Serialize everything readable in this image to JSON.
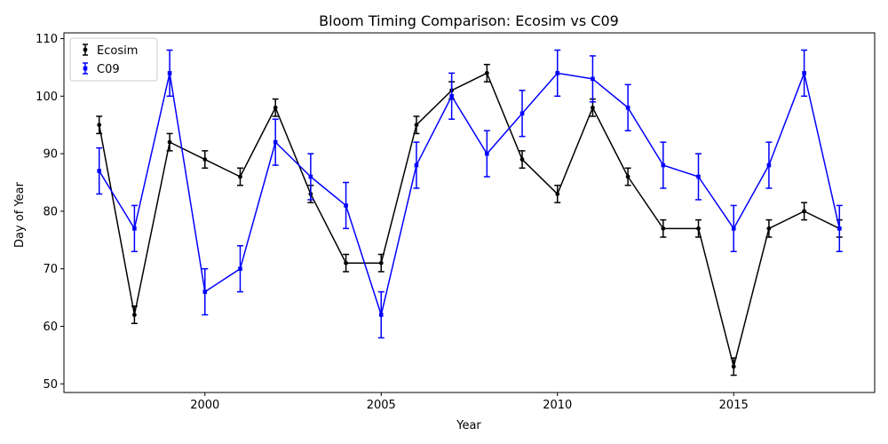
{
  "chart_data": {
    "type": "line",
    "title": "Bloom Timing Comparison: Ecosim vs C09",
    "xlabel": "Year",
    "ylabel": "Day of Year",
    "xlim": [
      1996,
      2019
    ],
    "ylim": [
      48.5,
      111
    ],
    "xticks": [
      2000,
      2005,
      2010,
      2015
    ],
    "yticks": [
      50,
      60,
      70,
      80,
      90,
      100,
      110
    ],
    "legend_position": "top-left",
    "x": [
      1997,
      1998,
      1999,
      2000,
      2001,
      2002,
      2003,
      2004,
      2005,
      2006,
      2007,
      2008,
      2009,
      2010,
      2011,
      2012,
      2013,
      2014,
      2015,
      2016,
      2017,
      2018
    ],
    "series": [
      {
        "name": "Ecosim",
        "color": "#000000",
        "marker": "circle",
        "values": [
          95,
          62,
          92,
          89,
          86,
          98,
          83,
          71,
          71,
          95,
          101,
          104,
          89,
          83,
          98,
          86,
          77,
          77,
          53,
          77,
          80,
          77
        ],
        "error": 1.5
      },
      {
        "name": "C09",
        "color": "#0000ff",
        "marker": "square",
        "values": [
          87,
          77,
          104,
          66,
          70,
          92,
          86,
          81,
          62,
          88,
          100,
          90,
          97,
          104,
          103,
          98,
          88,
          86,
          77,
          88,
          104,
          77
        ],
        "error": 4
      }
    ]
  }
}
